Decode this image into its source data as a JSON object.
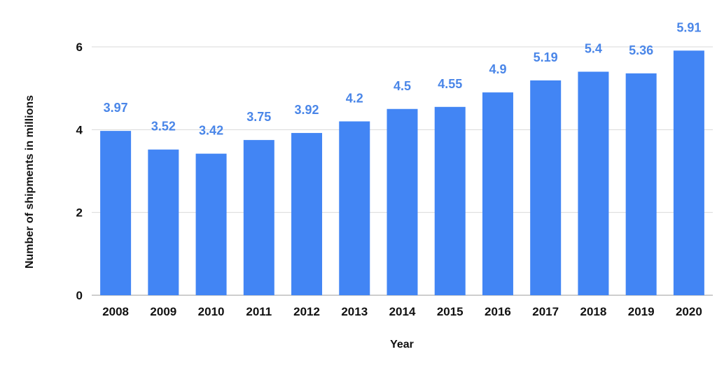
{
  "chart_data": {
    "type": "bar",
    "title": "",
    "xlabel": "Year",
    "ylabel": "Number of shipments in millions",
    "categories": [
      "2008",
      "2009",
      "2010",
      "2011",
      "2012",
      "2013",
      "2014",
      "2015",
      "2016",
      "2017",
      "2018",
      "2019",
      "2020"
    ],
    "values": [
      3.97,
      3.52,
      3.42,
      3.75,
      3.92,
      4.2,
      4.5,
      4.55,
      4.9,
      5.19,
      5.4,
      5.36,
      5.91
    ],
    "value_labels": [
      "3.97",
      "3.52",
      "3.42",
      "3.75",
      "3.92",
      "4.2",
      "4.5",
      "4.55",
      "4.9",
      "5.19",
      "5.4",
      "5.36",
      "5.91"
    ],
    "ylim": [
      0,
      6
    ],
    "yticks": [
      "0",
      "2",
      "4",
      "6"
    ],
    "grid": true,
    "legend": "none",
    "colors": {
      "bar": "#4285f4",
      "label": "#4a86e8"
    }
  }
}
